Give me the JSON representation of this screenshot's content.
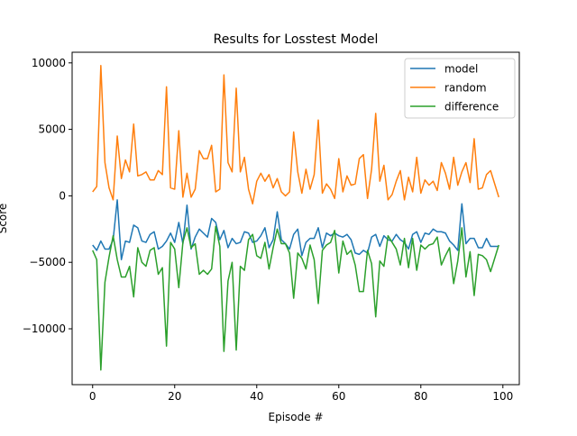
{
  "chart_data": {
    "type": "line",
    "title": "Results for Losstest Model",
    "xlabel": "Episode #",
    "ylabel": "Score",
    "xlim": [
      -5,
      104
    ],
    "ylim": [
      -14200,
      10800
    ],
    "grid": false,
    "legend_position": "top-right",
    "x_ticks": [
      0,
      20,
      40,
      60,
      80,
      100
    ],
    "y_ticks": [
      -10000,
      -5000,
      0,
      5000,
      10000
    ],
    "x": [
      0,
      1,
      2,
      3,
      4,
      5,
      6,
      7,
      8,
      9,
      10,
      11,
      12,
      13,
      14,
      15,
      16,
      17,
      18,
      19,
      20,
      21,
      22,
      23,
      24,
      25,
      26,
      27,
      28,
      29,
      30,
      31,
      32,
      33,
      34,
      35,
      36,
      37,
      38,
      39,
      40,
      41,
      42,
      43,
      44,
      45,
      46,
      47,
      48,
      49,
      50,
      51,
      52,
      53,
      54,
      55,
      56,
      57,
      58,
      59,
      60,
      61,
      62,
      63,
      64,
      65,
      66,
      67,
      68,
      69,
      70,
      71,
      72,
      73,
      74,
      75,
      76,
      77,
      78,
      79,
      80,
      81,
      82,
      83,
      84,
      85,
      86,
      87,
      88,
      89,
      90,
      91,
      92,
      93,
      94,
      95,
      96,
      97,
      98,
      99
    ],
    "series": [
      {
        "name": "model",
        "color": "#1f77b4",
        "values": [
          -3700,
          -4100,
          -3400,
          -4000,
          -4000,
          -3300,
          -300,
          -4800,
          -3400,
          -3500,
          -2200,
          -2400,
          -3400,
          -3500,
          -2900,
          -2700,
          -4000,
          -3800,
          -3400,
          -2800,
          -3500,
          -2000,
          -3600,
          -700,
          -4000,
          -3100,
          -2500,
          -2800,
          -3100,
          -1700,
          -2000,
          -3300,
          -2600,
          -3900,
          -3200,
          -3600,
          -3500,
          -2700,
          -2800,
          -3500,
          -3400,
          -3000,
          -2400,
          -3900,
          -3300,
          -1200,
          -3300,
          -3600,
          -4000,
          -2900,
          -2500,
          -4500,
          -3500,
          -3200,
          -3200,
          -2400,
          -3900,
          -2800,
          -3000,
          -2800,
          -3000,
          -3100,
          -2900,
          -3300,
          -4300,
          -4400,
          -4100,
          -4300,
          -3100,
          -2900,
          -3800,
          -3000,
          -3300,
          -3400,
          -2900,
          -3300,
          -3500,
          -4000,
          -2900,
          -2700,
          -3500,
          -2800,
          -2900,
          -2500,
          -2700,
          -2700,
          -2800,
          -3400,
          -3700,
          -4100,
          -600,
          -3600,
          -3200,
          -3200,
          -3900,
          -3900,
          -3200,
          -3800,
          -3800,
          -3800
        ]
      },
      {
        "name": "random",
        "color": "#ff7f0e",
        "values": [
          300,
          700,
          9800,
          2500,
          600,
          -300,
          4500,
          1300,
          2700,
          1800,
          5400,
          1500,
          1600,
          1800,
          1200,
          1200,
          1900,
          1600,
          8200,
          600,
          500,
          4900,
          -100,
          1700,
          -100,
          500,
          3400,
          2800,
          2800,
          3800,
          300,
          500,
          9100,
          2500,
          1800,
          8100,
          1800,
          2900,
          500,
          -600,
          1100,
          1700,
          1100,
          1600,
          600,
          1300,
          300,
          0,
          300,
          4800,
          1800,
          200,
          2000,
          500,
          1600,
          5700,
          200,
          900,
          500,
          -200,
          2800,
          300,
          1500,
          800,
          900,
          2800,
          3100,
          -200,
          2000,
          6200,
          1100,
          2300,
          -300,
          100,
          1100,
          1900,
          -300,
          1400,
          300,
          2900,
          200,
          1200,
          800,
          1100,
          400,
          2500,
          1700,
          500,
          2900,
          800,
          1800,
          2500,
          1000,
          4300,
          500,
          600,
          1600,
          1900,
          900,
          -100
        ]
      },
      {
        "name": "difference",
        "color": "#2ca02c",
        "values": [
          -4100,
          -4800,
          -13100,
          -6500,
          -4600,
          -3000,
          -4800,
          -6100,
          -6100,
          -5300,
          -7600,
          -3900,
          -5000,
          -5300,
          -4100,
          -3900,
          -5900,
          -5400,
          -11300,
          -3500,
          -4000,
          -6900,
          -3500,
          -2400,
          -3900,
          -3600,
          -5900,
          -5600,
          -5900,
          -5500,
          -2300,
          -3800,
          -11700,
          -6400,
          -5000,
          -11600,
          -5300,
          -5600,
          -3300,
          -2900,
          -4500,
          -4700,
          -3500,
          -5500,
          -3900,
          -2500,
          -3600,
          -3600,
          -4300,
          -7700,
          -4300,
          -4700,
          -5500,
          -3700,
          -4800,
          -8100,
          -4100,
          -3700,
          -3500,
          -2600,
          -5800,
          -3400,
          -4400,
          -4100,
          -5200,
          -7200,
          -7200,
          -4100,
          -5100,
          -9100,
          -4900,
          -5300,
          -3000,
          -3500,
          -4000,
          -5200,
          -3200,
          -5400,
          -3200,
          -5600,
          -3700,
          -4000,
          -3700,
          -3600,
          -3100,
          -5200,
          -4500,
          -3900,
          -6600,
          -4900,
          -2400,
          -6100,
          -4200,
          -7500,
          -4400,
          -4500,
          -4800,
          -5700,
          -4700,
          -3700
        ]
      }
    ]
  }
}
